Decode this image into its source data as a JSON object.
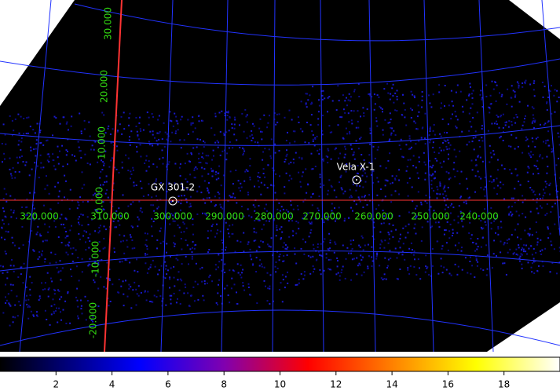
{
  "image": {
    "sources": [
      {
        "label": "GX 301-2"
      },
      {
        "label": "Vela X-1"
      }
    ],
    "ra_labels": [
      "320.000",
      "310.000",
      "300.000",
      "290.000",
      "280.000",
      "270.000",
      "260.000",
      "250.000",
      "240.000"
    ],
    "dec_labels": [
      "30.000",
      "20.000",
      "10.000",
      "0.000",
      "-10.000",
      "-20.000"
    ]
  },
  "colorbar": {
    "range": [
      0,
      20
    ],
    "ticks": [
      2,
      4,
      6,
      8,
      10,
      12,
      14,
      16,
      18
    ]
  }
}
